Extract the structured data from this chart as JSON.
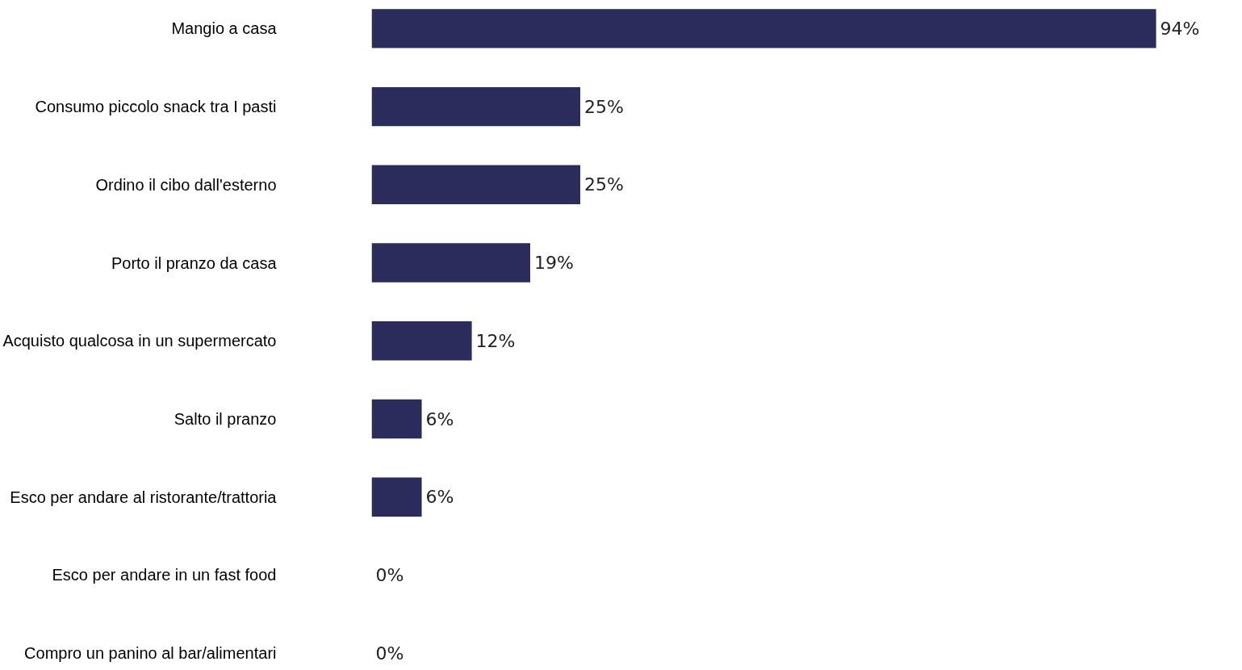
{
  "chart_data": {
    "type": "bar",
    "orientation": "horizontal",
    "categories": [
      "Mangio a casa",
      "Consumo piccolo snack tra I pasti",
      "Ordino il cibo dall'esterno",
      "Porto il pranzo da casa",
      "Acquisto qualcosa in un supermercato",
      "Salto il pranzo",
      "Esco per andare al ristorante/trattoria",
      "Esco per andare in un fast food",
      "Compro un panino al bar/alimentari"
    ],
    "values": [
      94,
      25,
      25,
      19,
      12,
      6,
      6,
      0,
      0
    ],
    "value_labels": [
      "94%",
      "25%",
      "25%",
      "19%",
      "12%",
      "6%",
      "6%",
      "0%",
      "0%"
    ],
    "color": "#2b2b5c"
  }
}
